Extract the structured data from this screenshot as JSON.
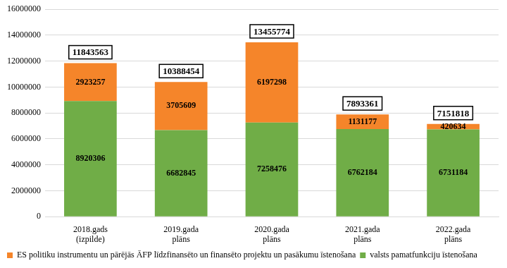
{
  "chart_data": {
    "type": "bar",
    "stacked": true,
    "categories": [
      "2018.gads (izpilde)",
      "2019.gada plāns",
      "2020.gada plāns",
      "2021.gada plāns",
      "2022.gada plāns"
    ],
    "series": [
      {
        "name": "valsts pamatfunkciju īstenošana",
        "color": "#70ad47",
        "values": [
          8920306,
          6682845,
          7258476,
          6762184,
          6731184
        ]
      },
      {
        "name": "ES politiku instrumentu un pārējās ĀFP līdzfinansēto un finansēto projektu un pasākumu īstenošana",
        "color": "#f5852a",
        "values": [
          2923257,
          3705609,
          6197298,
          1131177,
          420634
        ]
      }
    ],
    "totals": [
      11843563,
      10388454,
      13455774,
      7893361,
      7151818
    ],
    "ylim": [
      0,
      16000000
    ],
    "yticks": [
      0,
      2000000,
      4000000,
      6000000,
      8000000,
      10000000,
      12000000,
      14000000,
      16000000
    ],
    "grid": true,
    "data_labels": true,
    "legend": "bottom"
  }
}
